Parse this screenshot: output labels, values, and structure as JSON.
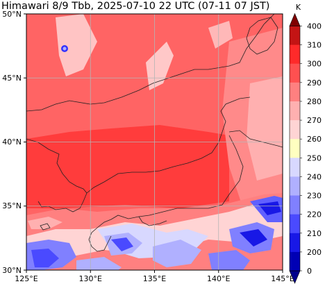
{
  "title": "Himawari 8/9 Tbb, 2025-07-10 22 UTC (07-11 07 JST)",
  "map": {
    "lon_range": [
      125,
      145
    ],
    "lat_range": [
      30,
      50
    ],
    "lon_ticks": [
      "125°E",
      "130°E",
      "135°E",
      "140°E",
      "145°E"
    ],
    "lat_ticks": [
      "50°N",
      "45°N",
      "40°N",
      "35°N",
      "30°N"
    ],
    "grid": true,
    "coastlines": true
  },
  "colorbar": {
    "unit": "K",
    "ticks": [
      "400",
      "310",
      "300",
      "290",
      "280",
      "270",
      "260",
      "250",
      "240",
      "230",
      "220",
      "210",
      "200",
      "0"
    ],
    "colors": [
      "#7f0000",
      "#c41414",
      "#ff2a2a",
      "#ff5050",
      "#ff8080",
      "#ffb0b0",
      "#ffd4d4",
      "#ffffc0",
      "#d8d8ff",
      "#b0b0ff",
      "#8080ff",
      "#4a4aff",
      "#1818e6",
      "#0000b4",
      "#00008b"
    ]
  }
}
